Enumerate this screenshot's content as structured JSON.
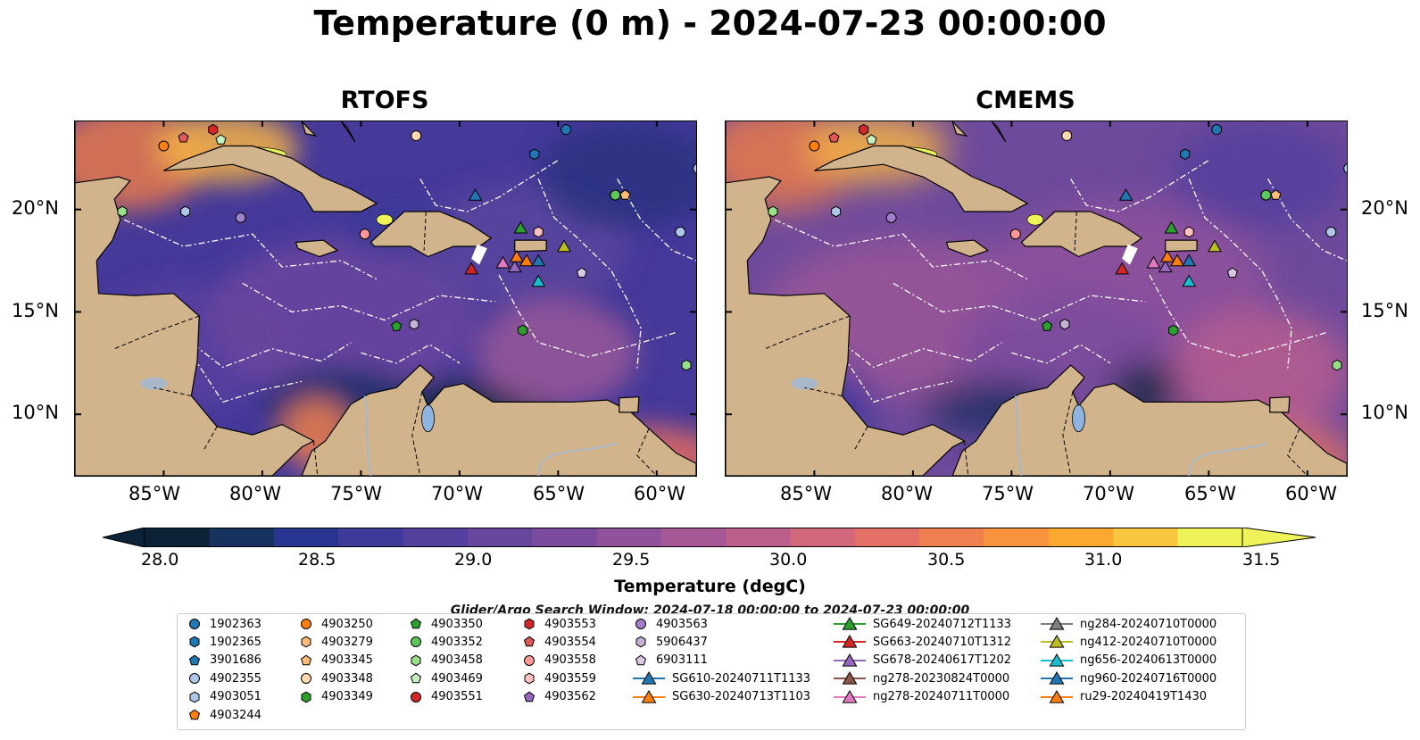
{
  "title": "Temperature (0 m) - 2024-07-23 00:00:00",
  "panels": [
    {
      "title": "RTOFS"
    },
    {
      "title": "CMEMS"
    }
  ],
  "lat_ticks": [
    "20°N",
    "15°N",
    "10°N"
  ],
  "lon_ticks": [
    "85°W",
    "80°W",
    "75°W",
    "70°W",
    "65°W",
    "60°W"
  ],
  "colorbar": {
    "label": "Temperature (degC)",
    "ticks": [
      "28.0",
      "28.5",
      "29.0",
      "29.5",
      "30.0",
      "30.5",
      "31.0",
      "31.5"
    ],
    "colors": [
      "#0b2237",
      "#17325f",
      "#283591",
      "#3d3a9a",
      "#53419d",
      "#66479e",
      "#7b4c9d",
      "#8f529b",
      "#a65896",
      "#bd5f8c",
      "#d1677b",
      "#e27066",
      "#f07f4f",
      "#f7933c",
      "#fba831",
      "#f8c63f",
      "#eef35a"
    ]
  },
  "search_window": "Glider/Argo Search Window: 2024-07-18 00:00:00 to 2024-07-23 00:00:00",
  "land_color": "#d2b48c",
  "legend": [
    {
      "label": "1902363",
      "shape": "circle",
      "color": "#1f77b4"
    },
    {
      "label": "1902365",
      "shape": "hexagon",
      "color": "#1f77b4"
    },
    {
      "label": "3901686",
      "shape": "pentagon",
      "color": "#1f77b4"
    },
    {
      "label": "4902355",
      "shape": "circle",
      "color": "#aec7e8"
    },
    {
      "label": "4903051",
      "shape": "hexagon",
      "color": "#aec7e8"
    },
    {
      "label": "4903244",
      "shape": "pentagon",
      "color": "#ff7f0e"
    },
    {
      "label": "4903250",
      "shape": "circle",
      "color": "#ff7f0e"
    },
    {
      "label": "4903279",
      "shape": "hexagon",
      "color": "#ffbb78"
    },
    {
      "label": "4903345",
      "shape": "pentagon",
      "color": "#ffbb78"
    },
    {
      "label": "4903348",
      "shape": "circle",
      "color": "#ffdab0"
    },
    {
      "label": "4903349",
      "shape": "hexagon",
      "color": "#2ca02c"
    },
    {
      "label": "4903350",
      "shape": "pentagon",
      "color": "#2ca02c"
    },
    {
      "label": "4903352",
      "shape": "circle",
      "color": "#5bc85b"
    },
    {
      "label": "4903458",
      "shape": "hexagon",
      "color": "#98df8a"
    },
    {
      "label": "4903469",
      "shape": "pentagon",
      "color": "#c7f0c0"
    },
    {
      "label": "4903551",
      "shape": "circle",
      "color": "#d62728"
    },
    {
      "label": "4903553",
      "shape": "hexagon",
      "color": "#d62728"
    },
    {
      "label": "4903554",
      "shape": "pentagon",
      "color": "#e0575a"
    },
    {
      "label": "4903558",
      "shape": "circle",
      "color": "#ff9896"
    },
    {
      "label": "4903559",
      "shape": "hexagon",
      "color": "#ffc0bf"
    },
    {
      "label": "4903562",
      "shape": "pentagon",
      "color": "#9467bd"
    },
    {
      "label": "4903563",
      "shape": "circle",
      "color": "#a27fcc"
    },
    {
      "label": "5906437",
      "shape": "hexagon",
      "color": "#c5b0d5"
    },
    {
      "label": "6903111",
      "shape": "pentagon",
      "color": "#d8c8e6"
    },
    {
      "label": "SG610-20240711T1133",
      "shape": "triangle",
      "color": "#1f77b4"
    },
    {
      "label": "SG630-20240713T1103",
      "shape": "triangle",
      "color": "#ff7f0e"
    },
    {
      "label": "SG649-20240712T1133",
      "shape": "triangle",
      "color": "#2ca02c"
    },
    {
      "label": "SG663-20240710T1312",
      "shape": "triangle",
      "color": "#d62728"
    },
    {
      "label": "SG678-20240617T1202",
      "shape": "triangle",
      "color": "#9467bd"
    },
    {
      "label": "ng278-20230824T0000",
      "shape": "triangle",
      "color": "#8c564b"
    },
    {
      "label": "ng278-20240711T0000",
      "shape": "triangle",
      "color": "#e377c2"
    },
    {
      "label": "ng284-20240710T0000",
      "shape": "triangle",
      "color": "#7f7f7f"
    },
    {
      "label": "ng412-20240710T0000",
      "shape": "triangle",
      "color": "#bcbd22"
    },
    {
      "label": "ng656-20240613T0000",
      "shape": "triangle",
      "color": "#17becf"
    },
    {
      "label": "ng960-20240716T0000",
      "shape": "triangle",
      "color": "#1f77b4"
    },
    {
      "label": "ru29-20240419T1430",
      "shape": "triangle",
      "color": "#ff7f0e"
    }
  ],
  "markers": [
    {
      "id": "4903250",
      "shape": "circle",
      "color": "#ff7f0e",
      "lon": -85.0,
      "lat": 23.1
    },
    {
      "id": "4903554",
      "shape": "pentagon",
      "color": "#e0575a",
      "lon": -84.0,
      "lat": 23.5
    },
    {
      "id": "4903553",
      "shape": "hexagon",
      "color": "#d62728",
      "lon": -82.5,
      "lat": 23.9
    },
    {
      "id": "4903469",
      "shape": "pentagon",
      "color": "#c7f0c0",
      "lon": -82.1,
      "lat": 23.4
    },
    {
      "id": "4903348",
      "shape": "circle",
      "color": "#ffdab0",
      "lon": -72.2,
      "lat": 23.6
    },
    {
      "id": "1902363",
      "shape": "circle",
      "color": "#1f77b4",
      "lon": -64.6,
      "lat": 23.9
    },
    {
      "id": "1902365",
      "shape": "hexagon",
      "color": "#1f77b4",
      "lon": -66.2,
      "lat": 22.7
    },
    {
      "id": "4902355-a",
      "shape": "circle",
      "color": "#aec7e8",
      "lon": -57.9,
      "lat": 22.0
    },
    {
      "id": "4903352",
      "shape": "circle",
      "color": "#5bc85b",
      "lon": -62.1,
      "lat": 20.7
    },
    {
      "id": "4903345",
      "shape": "pentagon",
      "color": "#ffbb78",
      "lon": -61.6,
      "lat": 20.7
    },
    {
      "id": "4902355",
      "shape": "circle",
      "color": "#aec7e8",
      "lon": -58.8,
      "lat": 18.9
    },
    {
      "id": "4903458",
      "shape": "hexagon",
      "color": "#98df8a",
      "lon": -87.1,
      "lat": 19.9
    },
    {
      "id": "4903051",
      "shape": "hexagon",
      "color": "#aec7e8",
      "lon": -83.9,
      "lat": 19.9
    },
    {
      "id": "4903563",
      "shape": "circle",
      "color": "#a27fcc",
      "lon": -81.1,
      "lat": 19.6
    },
    {
      "id": "4903558",
      "shape": "circle",
      "color": "#ff9896",
      "lon": -74.8,
      "lat": 18.8
    },
    {
      "id": "4903559",
      "shape": "hexagon",
      "color": "#ffc0bf",
      "lon": -66.0,
      "lat": 18.9
    },
    {
      "id": "6903111",
      "shape": "pentagon",
      "color": "#d8c8e6",
      "lon": -63.8,
      "lat": 16.9
    },
    {
      "id": "4903350",
      "shape": "pentagon",
      "color": "#2ca02c",
      "lon": -73.2,
      "lat": 14.3
    },
    {
      "id": "5906437",
      "shape": "hexagon",
      "color": "#c5b0d5",
      "lon": -72.3,
      "lat": 14.4
    },
    {
      "id": "4903349",
      "shape": "hexagon",
      "color": "#2ca02c",
      "lon": -66.8,
      "lat": 14.1
    },
    {
      "id": "4903458-b",
      "shape": "hexagon",
      "color": "#98df8a",
      "lon": -58.5,
      "lat": 12.4
    },
    {
      "id": "SG610",
      "shape": "triangle",
      "color": "#1f77b4",
      "lon": -69.2,
      "lat": 20.7
    },
    {
      "id": "SG649",
      "shape": "triangle",
      "color": "#2ca02c",
      "lon": -66.9,
      "lat": 19.1
    },
    {
      "id": "ng412",
      "shape": "triangle",
      "color": "#bcbd22",
      "lon": -64.7,
      "lat": 18.2
    },
    {
      "id": "SG663",
      "shape": "triangle",
      "color": "#d62728",
      "lon": -69.4,
      "lat": 17.1
    },
    {
      "id": "ng278-2024",
      "shape": "triangle",
      "color": "#e377c2",
      "lon": -67.8,
      "lat": 17.4
    },
    {
      "id": "SG678",
      "shape": "triangle",
      "color": "#9467bd",
      "lon": -67.2,
      "lat": 17.2
    },
    {
      "id": "SG630",
      "shape": "triangle",
      "color": "#ff7f0e",
      "lon": -67.1,
      "lat": 17.7
    },
    {
      "id": "ru29",
      "shape": "triangle",
      "color": "#ff7f0e",
      "lon": -66.6,
      "lat": 17.5
    },
    {
      "id": "ng960",
      "shape": "triangle",
      "color": "#1f77b4",
      "lon": -66.0,
      "lat": 17.5
    },
    {
      "id": "ng656",
      "shape": "triangle",
      "color": "#17becf",
      "lon": -66.0,
      "lat": 16.5
    }
  ]
}
